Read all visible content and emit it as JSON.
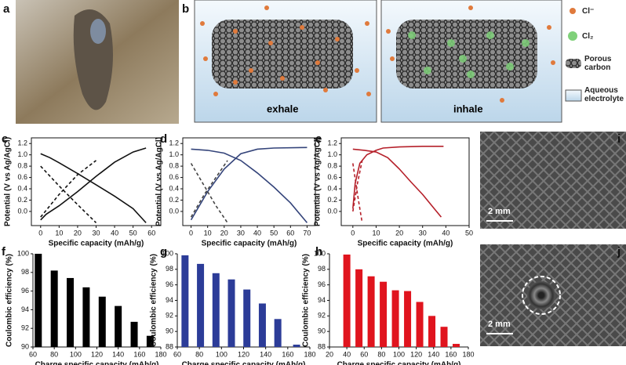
{
  "panel_labels": [
    "a",
    "b",
    "c",
    "d",
    "e",
    "f",
    "g",
    "h",
    "i",
    "j"
  ],
  "diagram": {
    "left_label": "exhale",
    "right_label": "inhale",
    "legend": [
      "Cl⁻",
      "Cl₂",
      "Porous carbon",
      "Aqueous electrolyte"
    ]
  },
  "photos": {
    "i_scale": "2 mm",
    "j_scale": "2 mm"
  },
  "chart_data": [
    {
      "type": "line",
      "xlabel": "Specific capacity (mAh/g)",
      "ylabel": "Potential (V vs Ag/AgCl)",
      "xlim": [
        -5,
        65
      ],
      "xticks": [
        0,
        10,
        20,
        30,
        40,
        50,
        60
      ],
      "ylim": [
        -0.25,
        1.3
      ],
      "yticks": [
        {
          "value": 0,
          "label": "0.0"
        },
        0.2,
        0.4,
        0.6,
        0.8,
        {
          "value": 1,
          "label": "1.0"
        },
        1.2
      ],
      "series": [
        {
          "color": "#111111",
          "linestyle": "solid",
          "x": [
            0,
            5,
            10,
            20,
            30,
            40,
            50,
            57
          ],
          "values": [
            1.02,
            0.95,
            0.86,
            0.67,
            0.47,
            0.27,
            0.05,
            -0.2
          ]
        },
        {
          "color": "#111111",
          "linestyle": "solid",
          "x": [
            0,
            3,
            10,
            20,
            30,
            40,
            50,
            57
          ],
          "values": [
            -0.15,
            -0.05,
            0.1,
            0.35,
            0.62,
            0.87,
            1.05,
            1.12
          ]
        },
        {
          "color": "#111111",
          "linestyle": "dashed",
          "x": [
            0,
            10,
            20,
            30
          ],
          "values": [
            0.8,
            0.45,
            0.12,
            -0.2
          ]
        },
        {
          "color": "#111111",
          "linestyle": "dashed",
          "x": [
            0,
            10,
            20,
            30
          ],
          "values": [
            -0.1,
            0.3,
            0.65,
            0.9
          ]
        }
      ]
    },
    {
      "type": "line",
      "xlabel": "Specific capacity (mAh/g)",
      "ylabel": "Potential (V vs Ag/AgCl)",
      "xlim": [
        -5,
        75
      ],
      "xticks": [
        0,
        10,
        20,
        30,
        40,
        50,
        60,
        70
      ],
      "ylim": [
        -0.25,
        1.3
      ],
      "yticks": [
        {
          "value": 0,
          "label": "0.0"
        },
        0.2,
        0.4,
        0.6,
        0.8,
        {
          "value": 1,
          "label": "1.0"
        },
        1.2
      ],
      "series": [
        {
          "color": "#34447a",
          "linestyle": "solid",
          "x": [
            0,
            10,
            20,
            30,
            40,
            50,
            60,
            70
          ],
          "values": [
            1.1,
            1.08,
            1.03,
            0.9,
            0.68,
            0.43,
            0.15,
            -0.2
          ]
        },
        {
          "color": "#34447a",
          "linestyle": "solid",
          "x": [
            0,
            5,
            10,
            20,
            30,
            40,
            50,
            70
          ],
          "values": [
            -0.15,
            0.1,
            0.35,
            0.75,
            1.02,
            1.1,
            1.12,
            1.13
          ]
        },
        {
          "color": "#444444",
          "linestyle": "dashed",
          "x": [
            0,
            8,
            15,
            22
          ],
          "values": [
            0.85,
            0.45,
            0.1,
            -0.2
          ]
        },
        {
          "color": "#444444",
          "linestyle": "dashed",
          "x": [
            0,
            8,
            15,
            22
          ],
          "values": [
            -0.1,
            0.3,
            0.6,
            0.9
          ]
        }
      ]
    },
    {
      "type": "line",
      "xlabel": "Specific capacity (mAh/g)",
      "ylabel": "Potential (V vs Ag/AgCl)",
      "xlim": [
        -5,
        50
      ],
      "xticks": [
        0,
        10,
        20,
        30,
        40,
        50
      ],
      "ylim": [
        -0.25,
        1.3
      ],
      "yticks": [
        {
          "value": 0,
          "label": "0.0"
        },
        0.2,
        0.4,
        0.6,
        0.8,
        {
          "value": 1,
          "label": "1.0"
        },
        1.2
      ],
      "series": [
        {
          "color": "#b5202a",
          "linestyle": "solid",
          "x": [
            0,
            5,
            10,
            15,
            20,
            25,
            30,
            35,
            38
          ],
          "values": [
            1.1,
            1.08,
            1.05,
            0.95,
            0.75,
            0.52,
            0.3,
            0.05,
            -0.1
          ]
        },
        {
          "color": "#b5202a",
          "linestyle": "solid",
          "x": [
            0,
            1,
            3,
            6,
            10,
            13,
            20,
            30,
            39
          ],
          "values": [
            0.05,
            0.5,
            0.85,
            1.0,
            1.08,
            1.12,
            1.14,
            1.15,
            1.15
          ]
        },
        {
          "color": "#b5202a",
          "linestyle": "dashed",
          "x": [
            0,
            2,
            4
          ],
          "values": [
            0.85,
            0.3,
            -0.2
          ]
        },
        {
          "color": "#b5202a",
          "linestyle": "dashed",
          "x": [
            0,
            2,
            4
          ],
          "values": [
            0,
            0.5,
            0.9
          ]
        }
      ]
    },
    {
      "type": "bar",
      "xlabel": "Charge specific capacity (mAh/g)",
      "ylabel": "Coulombic efficiency (%)",
      "color": "#000000",
      "xlim": [
        60,
        180
      ],
      "xticks": [
        60,
        80,
        100,
        120,
        140,
        160,
        180
      ],
      "ylim": [
        90,
        100
      ],
      "yticks": [
        90,
        92,
        94,
        96,
        98,
        100
      ],
      "x": [
        65,
        80,
        95,
        110,
        125,
        140,
        155,
        170
      ],
      "values": [
        100,
        98.2,
        97.4,
        96.4,
        95.4,
        94.4,
        92.7,
        91.2
      ]
    },
    {
      "type": "bar",
      "xlabel": "Charge specific capacity (mAh/g)",
      "ylabel": "Coulombic efficiency (%)",
      "color": "#2c3c98",
      "xlim": [
        60,
        180
      ],
      "xticks": [
        60,
        80,
        100,
        120,
        140,
        160,
        180
      ],
      "ylim": [
        88,
        100
      ],
      "yticks": [
        88,
        90,
        92,
        94,
        96,
        98,
        100
      ],
      "x": [
        67,
        81,
        95,
        109,
        123,
        137,
        151,
        168
      ],
      "values": [
        99.8,
        98.7,
        97.5,
        96.7,
        95.4,
        93.6,
        91.6,
        88.3
      ]
    },
    {
      "type": "bar",
      "xlabel": "Charge specific capacity (mAh/g)",
      "ylabel": "Coulombic efficiency (%)",
      "color": "#e0141e",
      "xlim": [
        20,
        180
      ],
      "xticks": [
        20,
        40,
        60,
        80,
        100,
        120,
        140,
        160,
        180
      ],
      "ylim": [
        88,
        100
      ],
      "yticks": [
        88,
        90,
        92,
        94,
        96,
        98,
        100
      ],
      "x": [
        40,
        54,
        68,
        82,
        96,
        110,
        124,
        138,
        152,
        166
      ],
      "values": [
        99.9,
        98.0,
        97.1,
        96.4,
        95.3,
        95.2,
        93.8,
        92.0,
        90.6,
        88.4
      ]
    }
  ]
}
